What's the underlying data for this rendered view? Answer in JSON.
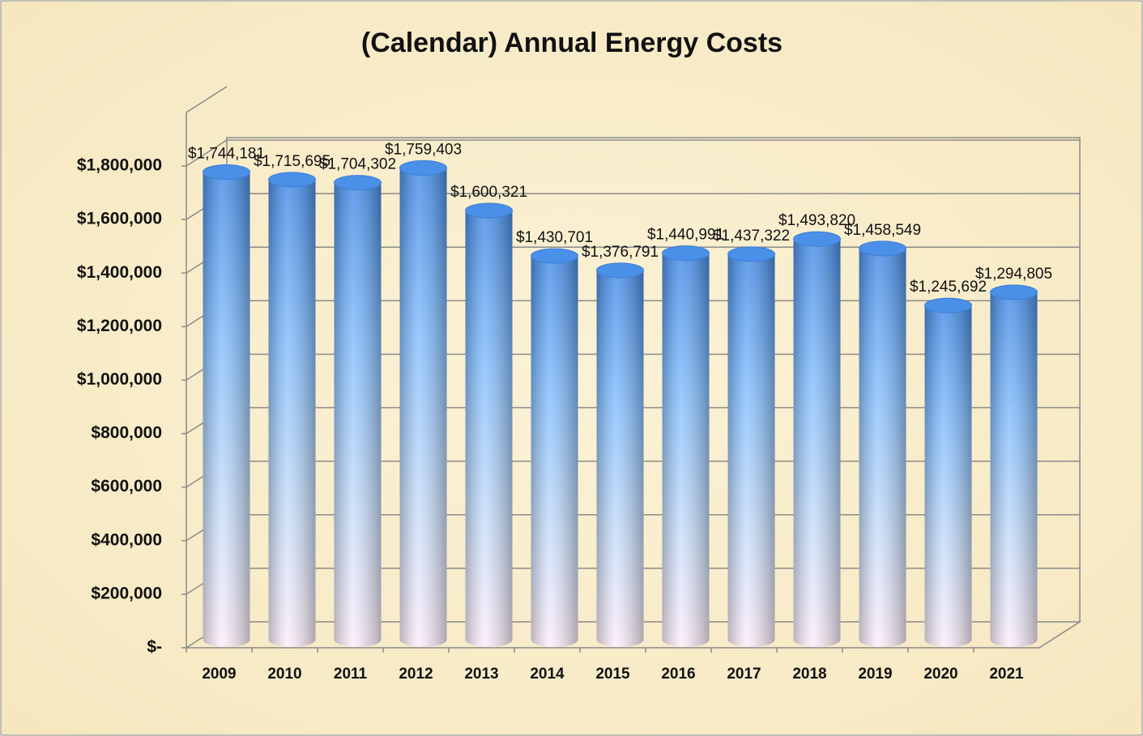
{
  "chart_data": {
    "type": "bar",
    "title": "(Calendar) Annual Energy Costs",
    "categories": [
      "2009",
      "2010",
      "2011",
      "2012",
      "2013",
      "2014",
      "2015",
      "2016",
      "2017",
      "2018",
      "2019",
      "2020",
      "2021"
    ],
    "values": [
      1744181,
      1715695,
      1704302,
      1759403,
      1600321,
      1430701,
      1376791,
      1440991,
      1437322,
      1493820,
      1458549,
      1245692,
      1294805
    ],
    "value_labels": [
      "$1,744,181",
      "$1,715,695",
      "$1,704,302",
      "$1,759,403",
      "$1,600,321",
      "$1,430,701",
      "$1,376,791",
      "$1,440,991",
      "$1,437,322",
      "$1,493,820",
      "$1,458,549",
      "$1,245,692",
      "$1,294,805"
    ],
    "color": "#4a8fe8",
    "ylim": [
      0,
      2000000
    ],
    "yticks": [
      {
        "value": 0,
        "label": "$-"
      },
      {
        "value": 200000,
        "label": "$200,000"
      },
      {
        "value": 400000,
        "label": "$400,000"
      },
      {
        "value": 600000,
        "label": "$600,000"
      },
      {
        "value": 800000,
        "label": "$800,000"
      },
      {
        "value": 1000000,
        "label": "$1,000,000"
      },
      {
        "value": 1200000,
        "label": "$1,200,000"
      },
      {
        "value": 1400000,
        "label": "$1,400,000"
      },
      {
        "value": 1600000,
        "label": "$1,600,000"
      },
      {
        "value": 1800000,
        "label": "$1,800,000"
      }
    ],
    "grid": true
  }
}
